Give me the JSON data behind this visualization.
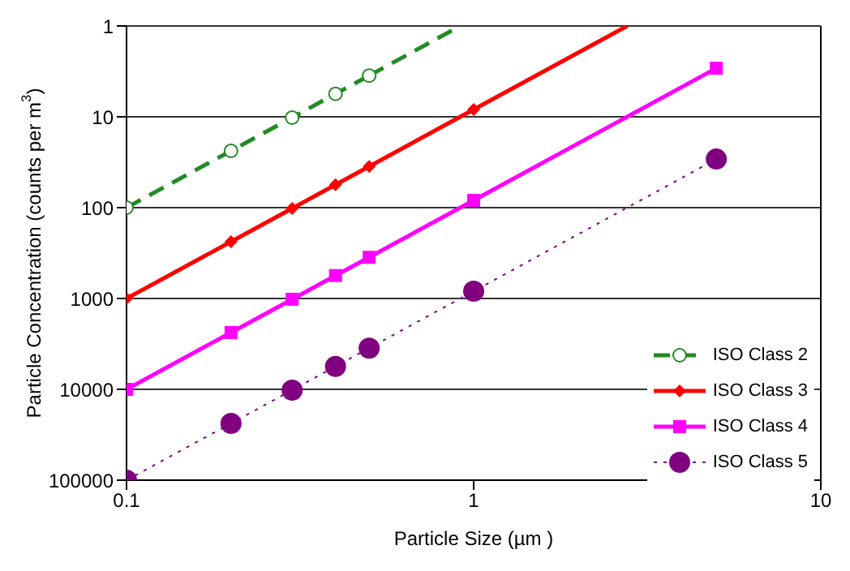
{
  "chart_data": {
    "type": "line",
    "xlabel": "Particle Size (µm )",
    "ylabel": "Particle Concentration (counts per m$^{3}$)",
    "log": "xy",
    "xlim": [
      0.1,
      10
    ],
    "xticks": [
      0.1,
      1,
      10
    ],
    "ylim": [
      100000,
      1
    ],
    "yticks": [
      1,
      10,
      100,
      1000,
      10000,
      100000
    ],
    "grid": "y",
    "legend": "right",
    "series": [
      {
        "name": "ISO Class 2",
        "color": "#228b22",
        "line_style": "dashed",
        "marker": "circle",
        "x": [
          0.1,
          0.2,
          0.3,
          0.4,
          0.5
        ],
        "values": [
          100,
          23.7,
          10.2,
          5.59,
          3.52
        ]
      },
      {
        "name": "ISO Class 3",
        "color": "#ff0000",
        "line_style": "solid",
        "marker": "diamond",
        "x": [
          0.1,
          0.2,
          0.3,
          0.4,
          0.5,
          1
        ],
        "values": [
          1000,
          237,
          102,
          55.9,
          35.2,
          8.32
        ]
      },
      {
        "name": "ISO Class 4",
        "color": "#ff00ff",
        "line_style": "solid",
        "marker": "square",
        "x": [
          0.1,
          0.2,
          0.3,
          0.4,
          0.5,
          1,
          5
        ],
        "values": [
          10000,
          2370,
          1020,
          559,
          352,
          83.2,
          2.92
        ]
      },
      {
        "name": "ISO Class 5",
        "color": "#800080",
        "line_style": "dotted",
        "marker": "circle",
        "x": [
          0.1,
          0.2,
          0.3,
          0.4,
          0.5,
          1,
          5
        ],
        "values": [
          100000,
          23700,
          10200,
          5590,
          3520,
          832,
          29.2
        ]
      },
      {
        "color": "#228b22",
        "line_style": "dashed",
        "marker": "none",
        "x": [
          0.5,
          0.915
        ],
        "values": [
          3.52,
          1
        ]
      },
      {
        "color": "#ff0000",
        "line_style": "solid",
        "marker": "none",
        "x": [
          1,
          2.77
        ],
        "values": [
          8.32,
          1
        ]
      }
    ]
  }
}
